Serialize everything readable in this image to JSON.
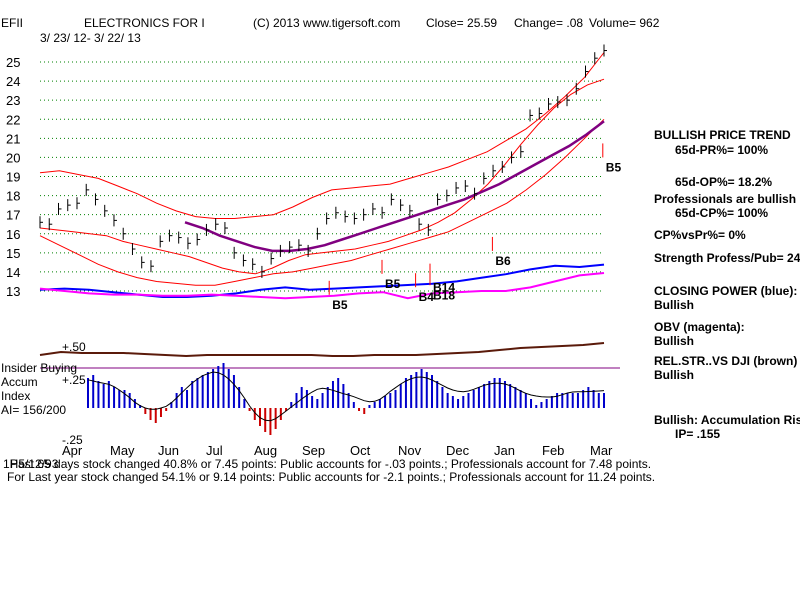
{
  "header": {
    "ticker": "EFII",
    "company": "ELECTRONICS FOR I",
    "copyright": "(C) 2013 www.tigersoft.com",
    "close": "Close=  25.59",
    "change": "Change= .08",
    "volume": "Volume= 962",
    "date_range": "3/ 23/ 12- 3/ 22/ 13"
  },
  "colors": {
    "price_bars": "#000000",
    "bands": "#ff0000",
    "ma": "#800080",
    "closing_power": "#0000ff",
    "obv": "#ff00ff",
    "rel_str": "#5a1a0a",
    "grid": "#008000",
    "accum_pos": "#0000cc",
    "accum_neg": "#cc0000",
    "insider_line": "#800080"
  },
  "chart_data": {
    "type": "line",
    "title": "EFII ELECTRONICS FOR I",
    "months": [
      "Apr",
      "May",
      "Jun",
      "Jul",
      "Aug",
      "Sep",
      "Oct",
      "Nov",
      "Dec",
      "Jan",
      "Feb",
      "Mar"
    ],
    "price_axis": {
      "labels": [
        "25",
        "24",
        "23",
        "22",
        "21",
        "20",
        "19",
        "18",
        "17",
        "16",
        "15",
        "14",
        "13"
      ],
      "ylim": [
        12.5,
        25.5
      ]
    },
    "price_close": [
      16.6,
      16.5,
      17.3,
      17.5,
      17.6,
      18.3,
      17.8,
      17.2,
      16.7,
      16.0,
      15.2,
      14.5,
      14.3,
      15.6,
      15.9,
      15.8,
      15.5,
      15.7,
      16.2,
      16.5,
      16.3,
      15.0,
      14.6,
      14.4,
      14.0,
      14.7,
      15.1,
      15.3,
      15.4,
      15.1,
      16.0,
      16.8,
      17.1,
      16.9,
      16.8,
      17.0,
      17.3,
      17.1,
      17.8,
      17.5,
      17.2,
      16.5,
      16.2,
      17.8,
      18.0,
      18.4,
      18.5,
      18.1,
      18.9,
      19.3,
      19.5,
      20.0,
      20.3,
      22.2,
      22.3,
      22.8,
      22.9,
      23.0,
      23.6,
      24.5,
      25.2,
      25.6
    ],
    "upper_band": [
      19.2,
      19.3,
      19.1,
      18.9,
      18.5,
      18.1,
      17.6,
      17.2,
      16.9,
      16.8,
      16.8,
      16.9,
      17.0,
      17.4,
      17.9,
      18.3,
      18.4,
      18.5,
      18.6,
      18.9,
      19.2,
      19.5,
      19.9,
      20.3,
      20.9,
      21.5,
      22.3,
      23.2,
      24.2,
      25.5
    ],
    "lower_band": [
      15.9,
      15.4,
      14.9,
      14.4,
      14.0,
      13.7,
      13.5,
      13.4,
      13.3,
      13.3,
      13.5,
      13.7,
      13.9,
      14.0,
      14.2,
      14.4,
      14.6,
      14.9,
      15.2,
      15.5,
      15.8,
      16.1,
      16.6,
      17.1,
      17.6,
      18.3,
      19.1,
      20.0,
      21.0,
      22.0
    ],
    "inner_upper": [
      16.3,
      16.2,
      16.1,
      16.0,
      15.9,
      15.6,
      15.4,
      15.2,
      15.0,
      14.8,
      14.5,
      14.2,
      14.0,
      13.9,
      14.2,
      14.6,
      14.9,
      15.0,
      15.1,
      15.2,
      15.4,
      15.6,
      15.9,
      16.2,
      16.6,
      17.1,
      17.8,
      18.6,
      19.6,
      20.7,
      21.7,
      22.6,
      23.3,
      23.8,
      24.1
    ],
    "ma_line": [
      16.6,
      16.3,
      15.9,
      15.6,
      15.3,
      15.1,
      15.1,
      15.2,
      15.4,
      15.7,
      16.0,
      16.3,
      16.6,
      16.9,
      17.2,
      17.5,
      17.8,
      18.2,
      18.6,
      19.1,
      19.6,
      20.1,
      20.6,
      21.2,
      21.9
    ],
    "closing_power": [
      15.1,
      15.2,
      15.1,
      14.9,
      14.7,
      14.5,
      14.5,
      14.6,
      14.8,
      15.1,
      15.3,
      15.1,
      15.2,
      15.3,
      15.4,
      15.5,
      15.6,
      15.8,
      16.1,
      16.4,
      16.8,
      17.1,
      17.0,
      17.2
    ],
    "obv": [
      15.2,
      15.0,
      14.8,
      14.7,
      14.7,
      14.6,
      14.6,
      14.7,
      14.6,
      14.5,
      14.4,
      14.5,
      14.6,
      14.8,
      14.9,
      14.4,
      14.8,
      14.9,
      15.0,
      15.0,
      15.3,
      15.8,
      16.3,
      16.5
    ],
    "rel_str": [
      0.45,
      0.48,
      0.47,
      0.47,
      0.47,
      0.46,
      0.45,
      0.44,
      0.45,
      0.45,
      0.45,
      0.45,
      0.45,
      0.45,
      0.44,
      0.44,
      0.45,
      0.45,
      0.45,
      0.46,
      0.47,
      0.48,
      0.5,
      0.52,
      0.53,
      0.54,
      0.55,
      0.57
    ],
    "accum_axis": {
      "labels": [
        "+.50",
        "+.25",
        "-.25"
      ]
    },
    "accumulation": [
      0.2,
      0.22,
      0.18,
      0.16,
      0.18,
      0.14,
      0.12,
      0.12,
      0.1,
      0.06,
      0.02,
      -0.04,
      -0.08,
      -0.1,
      -0.06,
      -0.02,
      0.04,
      0.1,
      0.14,
      0.12,
      0.18,
      0.2,
      0.22,
      0.24,
      0.26,
      0.28,
      0.3,
      0.26,
      0.22,
      0.14,
      0.06,
      -0.02,
      -0.08,
      -0.12,
      -0.16,
      -0.18,
      -0.14,
      -0.08,
      -0.02,
      0.04,
      0.1,
      0.14,
      0.12,
      0.08,
      0.06,
      0.1,
      0.14,
      0.18,
      0.2,
      0.16,
      0.1,
      0.04,
      -0.02,
      -0.04,
      0.02,
      0.04,
      0.06,
      0.08,
      0.1,
      0.12,
      0.16,
      0.2,
      0.22,
      0.24,
      0.26,
      0.24,
      0.22,
      0.18,
      0.14,
      0.1,
      0.08,
      0.06,
      0.08,
      0.1,
      0.12,
      0.14,
      0.16,
      0.18,
      0.2,
      0.2,
      0.18,
      0.16,
      0.14,
      0.12,
      0.1,
      0.06,
      0.02,
      0.04,
      0.06,
      0.08,
      0.1,
      0.1,
      0.1,
      0.1,
      0.1,
      0.12,
      0.14,
      0.12,
      0.1,
      0.1
    ],
    "signals": [
      {
        "label": "B5",
        "month_pos": 5.4,
        "value": 12.8
      },
      {
        "label": "B5",
        "month_pos": 6.5,
        "value": 13.9
      },
      {
        "label": "B4",
        "month_pos": 7.2,
        "value": 13.2
      },
      {
        "label": "B14",
        "month_pos": 7.5,
        "value": 13.7
      },
      {
        "label": "B18",
        "month_pos": 7.5,
        "value": 13.3
      },
      {
        "label": "B6",
        "month_pos": 8.8,
        "value": 15.1
      },
      {
        "label": "B5",
        "month_pos": 11.1,
        "value": 20.0
      }
    ]
  },
  "panel": {
    "trend_title": "BULLISH PRICE TREND",
    "pr_line": "65d-PR%= 100%",
    "op_line": "65d-OP%= 18.2%",
    "pros_line": "Professionals are bullish",
    "cp_line": "65d-CP%= 100%",
    "cpvspr": "CP%vsPr%=  0%",
    "strength": "Strength Profess/Pub= 24",
    "cp_title": "CLOSING POWER (blue):",
    "cp_value": "Bullish",
    "obv_title": "OBV (magenta):",
    "obv_value": "Bullish",
    "rel_title": "REL.STR..VS DJI (brown)",
    "rel_value": "Bullish",
    "accum_title": "Bullish: Accumulation Risi",
    "ip_line": "IP=  .155"
  },
  "accum_labels": {
    "insider": "Insider Buying",
    "accum": "Accum",
    "index": "Index",
    "ai": "AI= 156/200"
  },
  "footer": {
    "line1_prefix": "1H5/12/93",
    "line1": "Past 65 days stock changed  40.8% or  7.45 points:  Public accounts for -.03 points.;  Professionals account for  7.48 points.",
    "line2": "For Last year stock changed  54.1% or  9.14 points:  Public accounts for -2.1 points.;  Professionals account for  11.24 points."
  }
}
